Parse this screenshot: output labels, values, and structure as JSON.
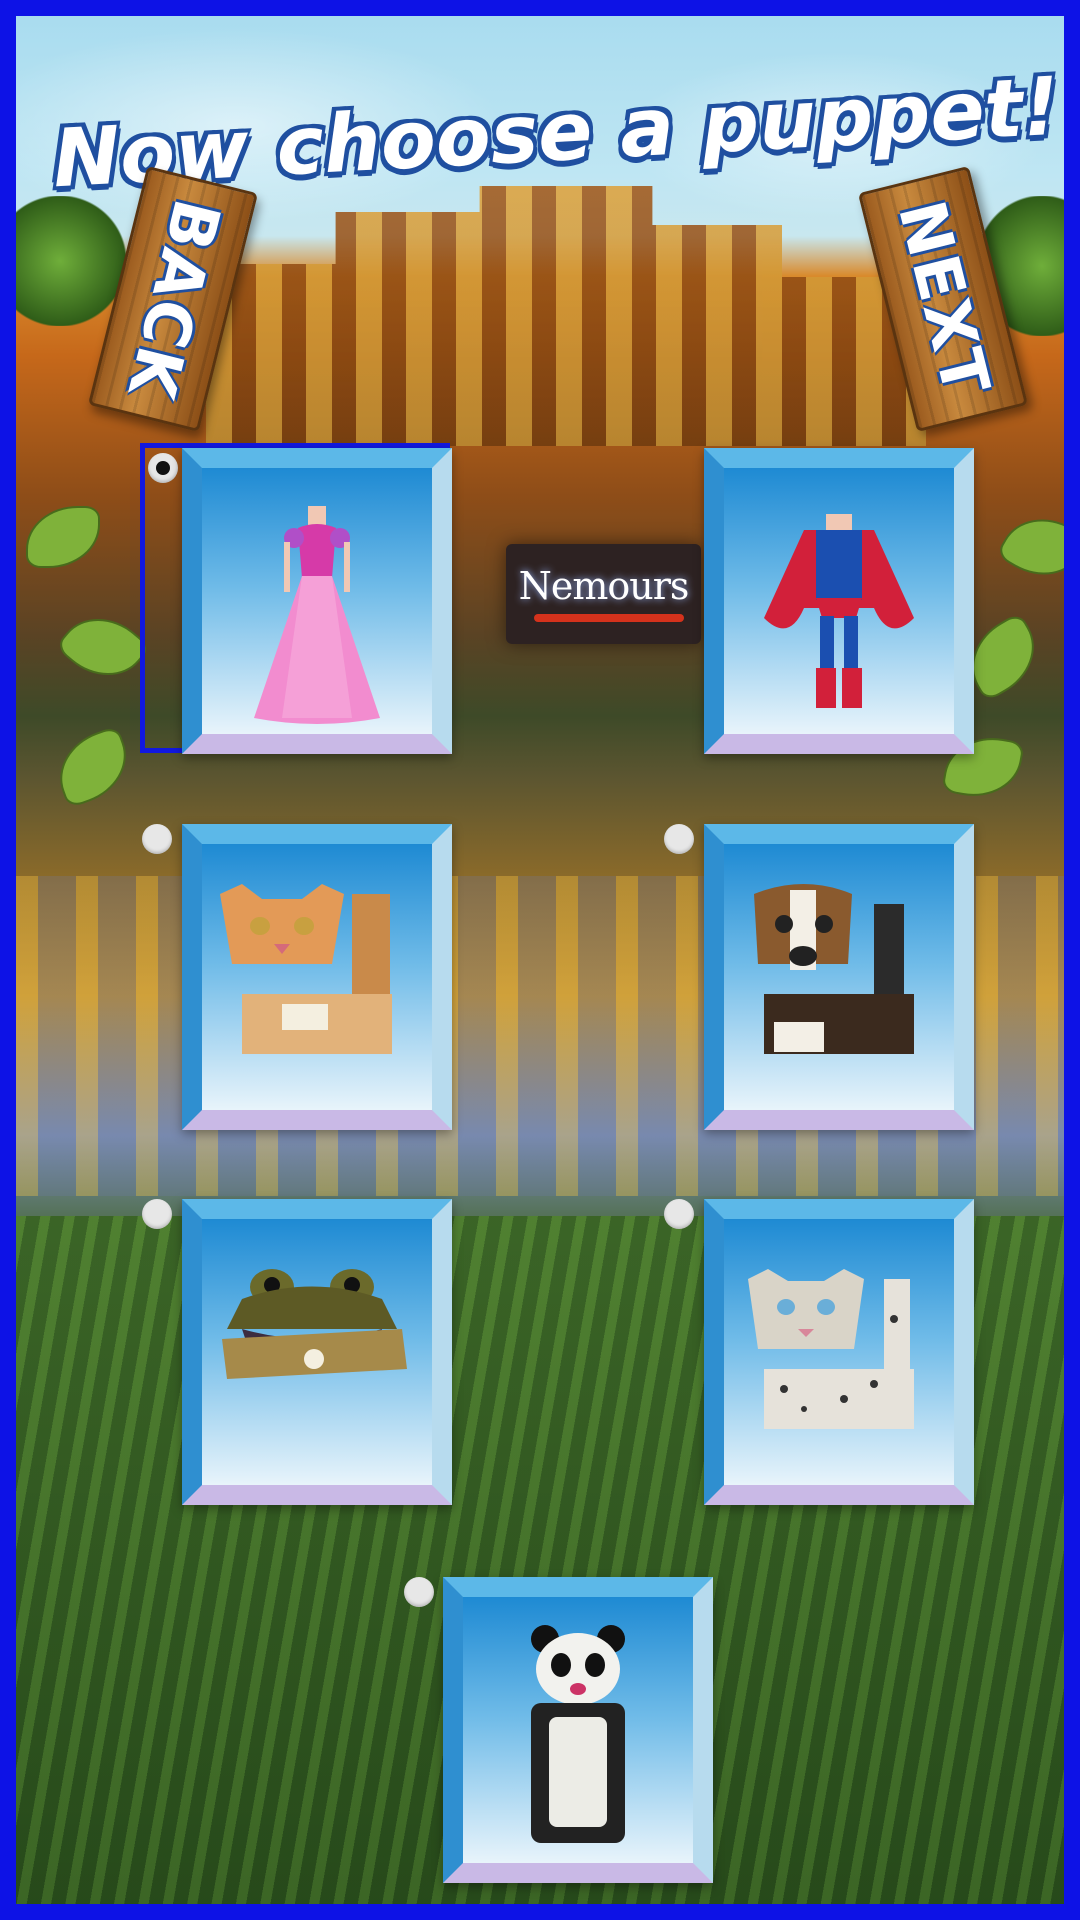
{
  "title": "Now choose a puppet!",
  "nav": {
    "back_label": "BACK",
    "next_label": "NEXT"
  },
  "sign": {
    "text": "Nemours"
  },
  "selected_index": 0,
  "puppets": [
    {
      "name": "princess-dress",
      "selected": true
    },
    {
      "name": "superhero",
      "selected": false
    },
    {
      "name": "cat",
      "selected": false
    },
    {
      "name": "dog",
      "selected": false
    },
    {
      "name": "frog",
      "selected": false
    },
    {
      "name": "snow-leopard",
      "selected": false
    },
    {
      "name": "panda",
      "selected": false
    }
  ],
  "colors": {
    "frame": "#0d12e6",
    "title_outline": "#1f4fa0",
    "selection": "#1118e0"
  }
}
